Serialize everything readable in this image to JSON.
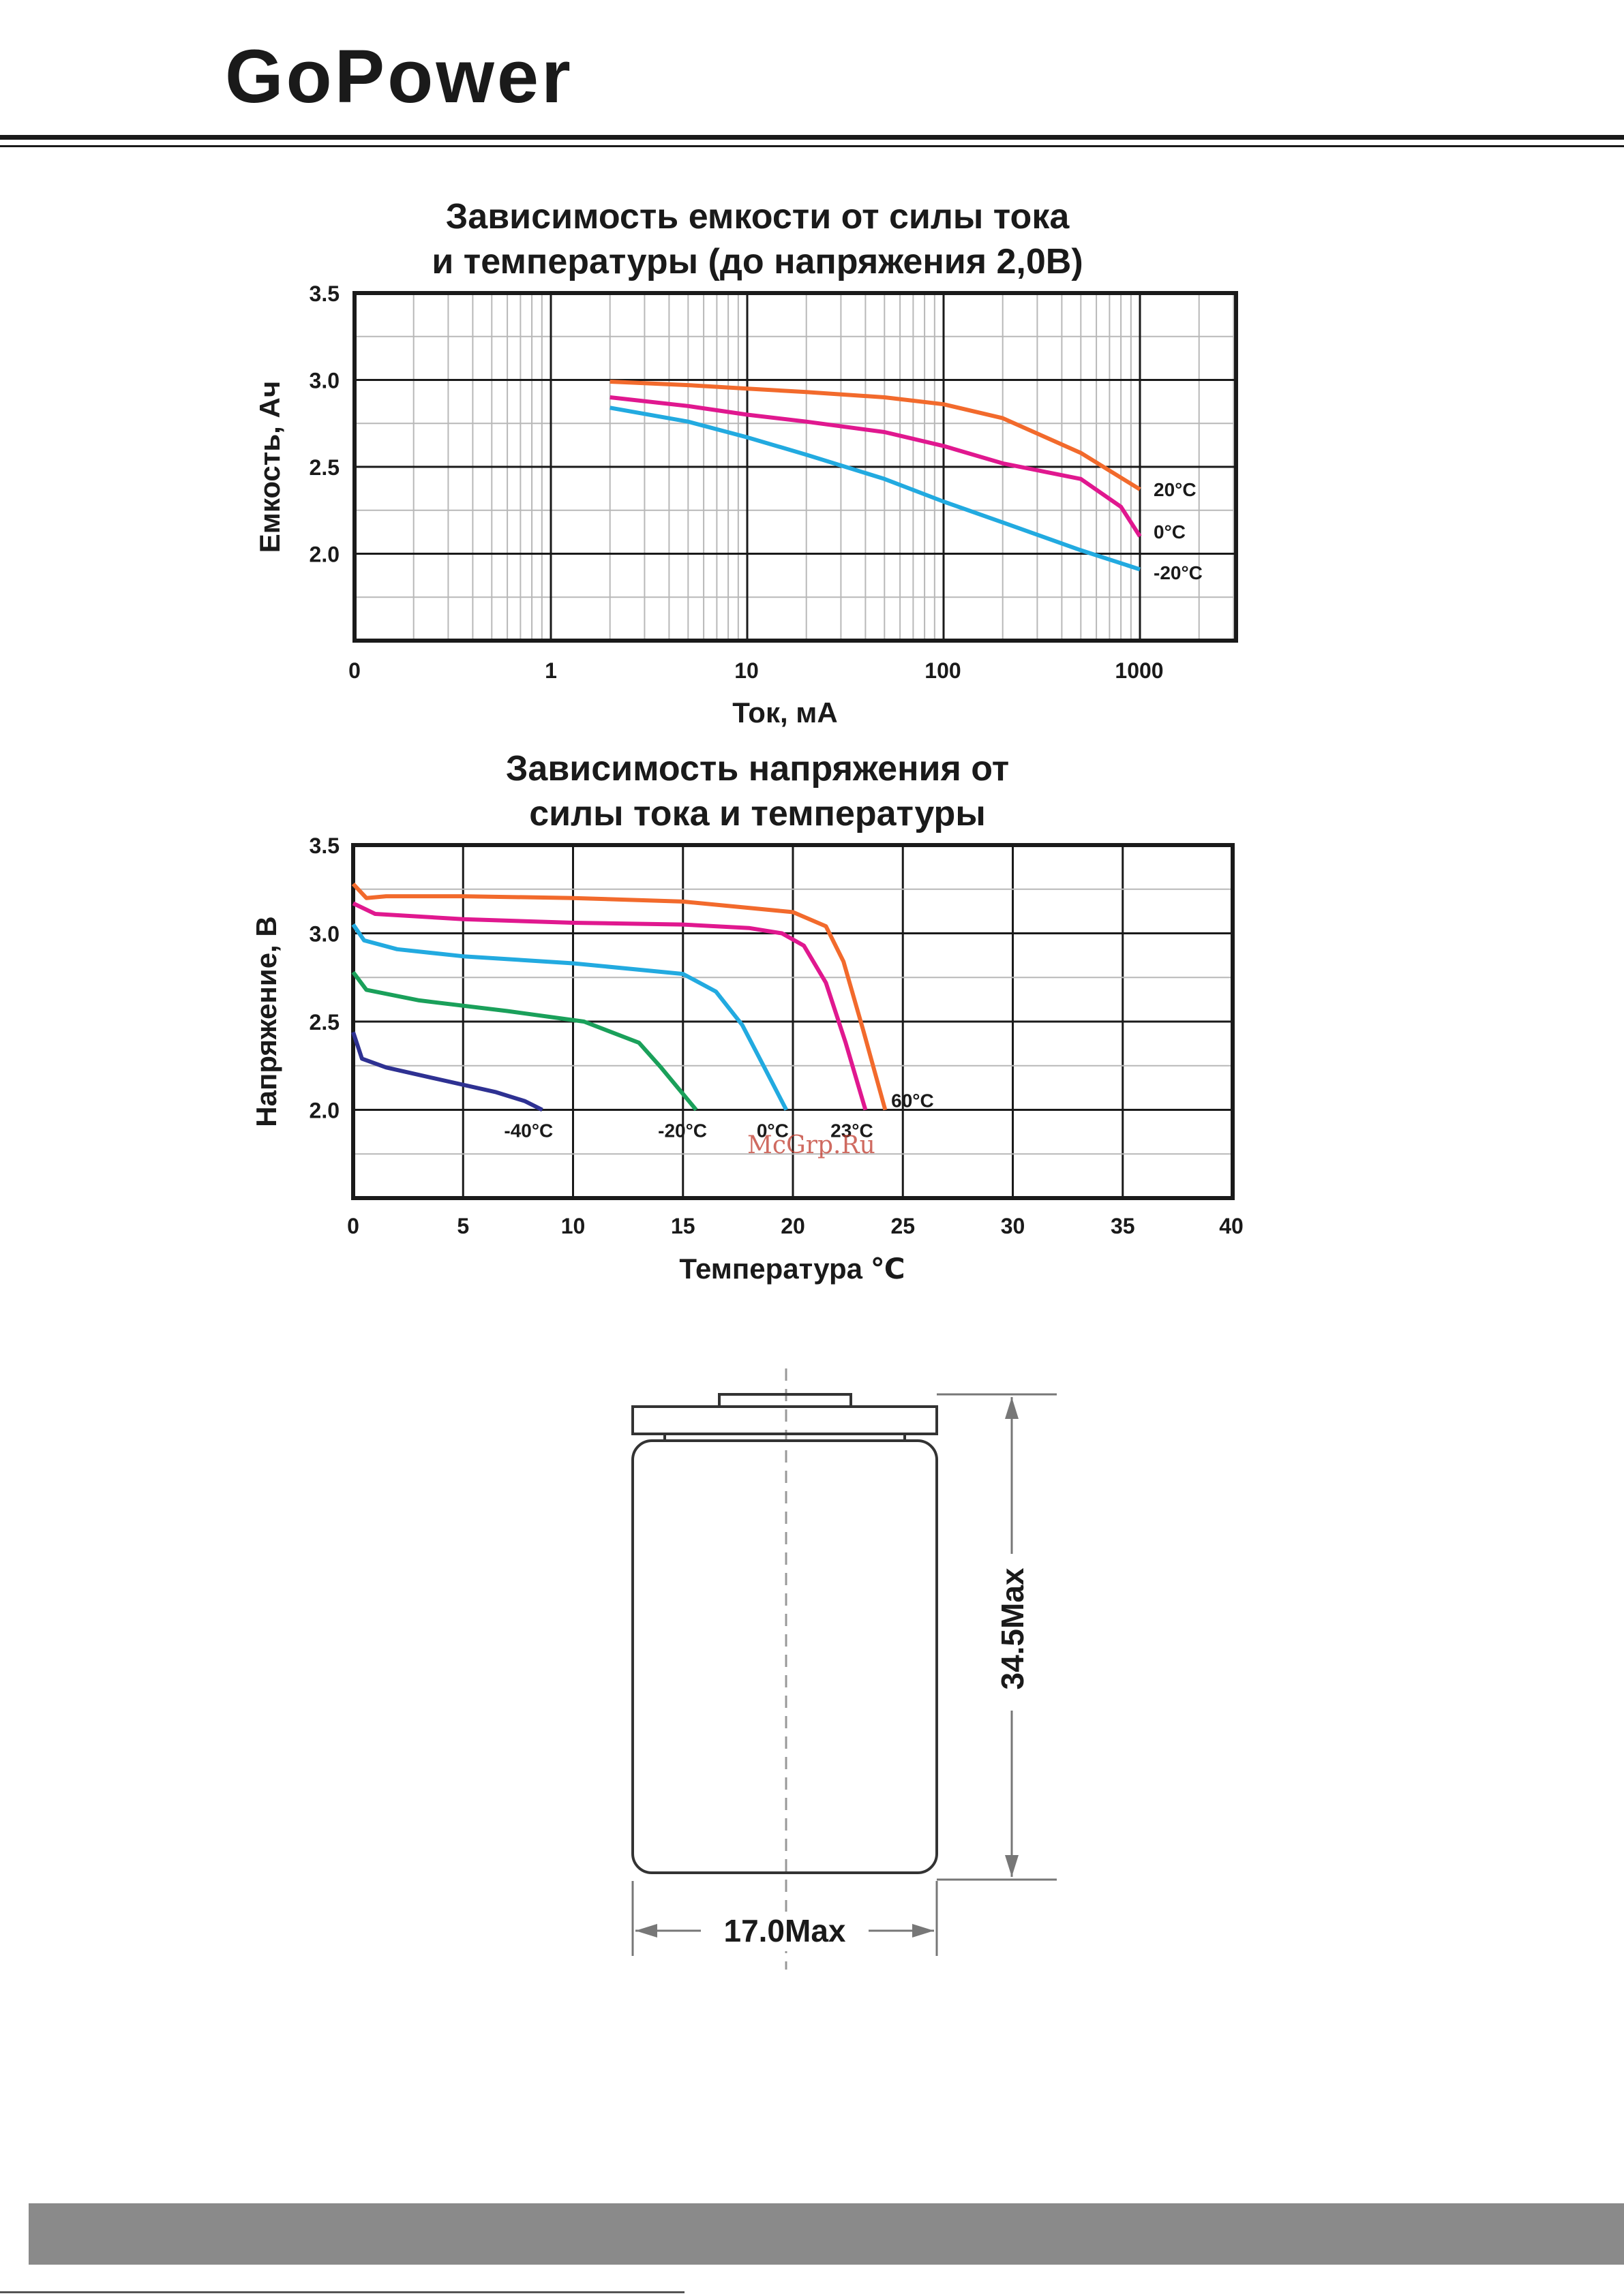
{
  "brand": {
    "logo": "GoPower"
  },
  "watermark": "McGrp.Ru",
  "chart_data": [
    {
      "type": "line",
      "title": [
        "Зависимость емкости от силы тока",
        "и температуры (до напряжения 2,0В)"
      ],
      "xlabel": "Ток, мА",
      "ylabel": "Емкость, Ач",
      "xscale": "log",
      "xticks": [
        "0",
        "1",
        "10",
        "100",
        "1000"
      ],
      "yticks": [
        "3.5",
        "3.0",
        "2.5",
        "2.0"
      ],
      "ylim": [
        1.5,
        3.5
      ],
      "grid": true,
      "series": [
        {
          "name": "20°C",
          "color": "#f26a2c",
          "x": [
            2,
            5,
            10,
            20,
            50,
            100,
            200,
            500,
            1000
          ],
          "y": [
            2.99,
            2.97,
            2.95,
            2.93,
            2.9,
            2.86,
            2.78,
            2.58,
            2.37
          ]
        },
        {
          "name": "0°C",
          "color": "#e0188f",
          "x": [
            2,
            5,
            10,
            20,
            50,
            100,
            200,
            500,
            800,
            1000
          ],
          "y": [
            2.9,
            2.85,
            2.8,
            2.76,
            2.7,
            2.62,
            2.52,
            2.43,
            2.27,
            2.1
          ]
        },
        {
          "name": "-20°C",
          "color": "#22aae0",
          "x": [
            2,
            5,
            10,
            20,
            50,
            100,
            200,
            500,
            1000
          ],
          "y": [
            2.84,
            2.76,
            2.67,
            2.57,
            2.43,
            2.3,
            2.18,
            2.02,
            1.91
          ]
        }
      ]
    },
    {
      "type": "line",
      "title": [
        "Зависимость напряжения от",
        "силы тока и температуры"
      ],
      "xlabel": "Температура ℃",
      "ylabel": "Напряжение, В",
      "xlim": [
        0,
        40
      ],
      "ylim": [
        1.5,
        3.5
      ],
      "xticks": [
        "0",
        "5",
        "10",
        "15",
        "20",
        "25",
        "30",
        "35",
        "40"
      ],
      "yticks": [
        "3.5",
        "3.0",
        "2.5",
        "2.0"
      ],
      "grid": true,
      "series": [
        {
          "name": "60°C",
          "color": "#f26a2c",
          "x": [
            0,
            0.6,
            1.5,
            5,
            10,
            15,
            20,
            21.5,
            22.3,
            23.2,
            24.2
          ],
          "y": [
            3.28,
            3.2,
            3.21,
            3.21,
            3.2,
            3.18,
            3.12,
            3.04,
            2.84,
            2.45,
            2.0
          ]
        },
        {
          "name": "23°C",
          "color": "#e0188f",
          "x": [
            0,
            1,
            5,
            10,
            15,
            18,
            19.5,
            20.5,
            21.5,
            22.4,
            23.3
          ],
          "y": [
            3.17,
            3.11,
            3.08,
            3.06,
            3.05,
            3.03,
            3.0,
            2.93,
            2.72,
            2.38,
            2.0
          ]
        },
        {
          "name": "0°C",
          "color": "#22aae0",
          "x": [
            0,
            0.5,
            2,
            5,
            10,
            15,
            16.5,
            17.7,
            18.7,
            19.7
          ],
          "y": [
            3.05,
            2.96,
            2.91,
            2.87,
            2.83,
            2.77,
            2.67,
            2.48,
            2.24,
            2.0
          ]
        },
        {
          "name": "-20°C",
          "color": "#1aa05a",
          "x": [
            0,
            0.6,
            3,
            7,
            10.5,
            13,
            14,
            14.8,
            15.6
          ],
          "y": [
            2.78,
            2.68,
            2.62,
            2.56,
            2.5,
            2.38,
            2.24,
            2.12,
            2.0
          ]
        },
        {
          "name": "-40°C",
          "color": "#2e3192",
          "x": [
            0,
            0.4,
            1.5,
            4,
            6.5,
            7.8,
            8.6
          ],
          "y": [
            2.44,
            2.29,
            2.24,
            2.17,
            2.1,
            2.05,
            2.0
          ]
        }
      ]
    }
  ],
  "drawing": {
    "height_label": "34.5Max",
    "width_label": "17.0Max"
  }
}
